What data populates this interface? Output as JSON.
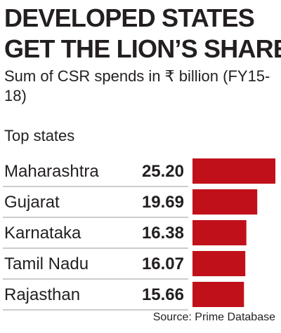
{
  "headline": {
    "line1": "DEVELOPED STATES",
    "line2": "GET THE LION’S SHARE"
  },
  "subtitle": "Sum of CSR spends in ₹ billion (FY15-18)",
  "section_label": "Top states",
  "colors": {
    "bar": "#c0111b",
    "text": "#231f20",
    "divider": "#9a9a9a"
  },
  "chart_data": {
    "type": "bar",
    "orientation": "horizontal",
    "title": "",
    "xlabel": "",
    "ylabel": "",
    "categories": [
      "Maharashtra",
      "Gujarat",
      "Karnataka",
      "Tamil Nadu",
      "Rajasthan"
    ],
    "values": [
      25.2,
      19.69,
      16.38,
      16.07,
      15.66
    ],
    "value_labels": [
      "25.20",
      "19.69",
      "16.38",
      "16.07",
      "15.66"
    ],
    "grid": false,
    "legend": "none"
  },
  "source": "Source: Prime Database"
}
